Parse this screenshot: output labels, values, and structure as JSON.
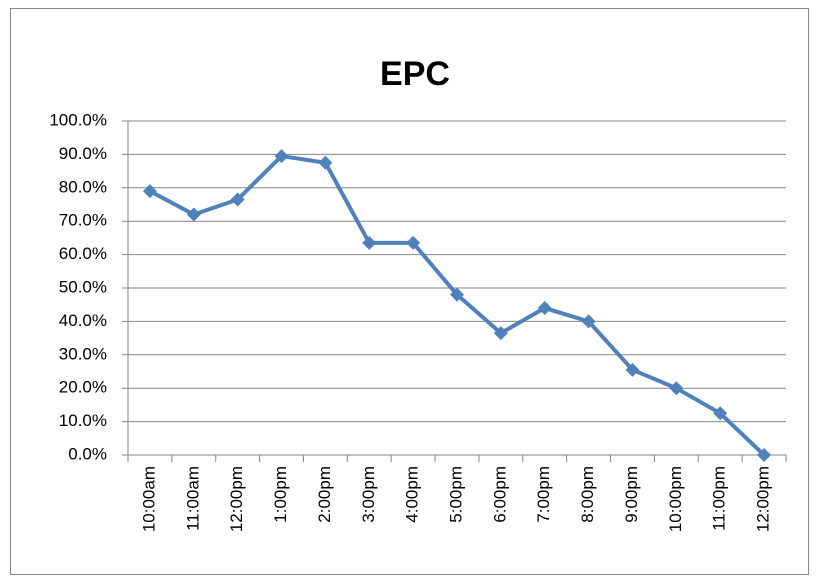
{
  "chart_data": {
    "type": "line",
    "title": "EPC",
    "categories": [
      "10:00am",
      "11:00am",
      "12:00pm",
      "1:00pm",
      "2:00pm",
      "3:00pm",
      "4:00pm",
      "5:00pm",
      "6:00pm",
      "7:00pm",
      "8:00pm",
      "9:00pm",
      "10:00pm",
      "11:00pm",
      "12:00pm"
    ],
    "series": [
      {
        "name": "EPC",
        "color": "#4f81bd",
        "values": [
          79,
          72,
          76.5,
          89.5,
          87.5,
          63.5,
          63.5,
          48,
          36.5,
          44,
          40,
          25.5,
          20,
          12.5,
          0
        ]
      }
    ],
    "ylim": [
      0,
      100
    ],
    "yticks": [
      {
        "value": 0,
        "label": "0.0%"
      },
      {
        "value": 10,
        "label": "10.0%"
      },
      {
        "value": 20,
        "label": "20.0%"
      },
      {
        "value": 30,
        "label": "30.0%"
      },
      {
        "value": 40,
        "label": "40.0%"
      },
      {
        "value": 50,
        "label": "50.0%"
      },
      {
        "value": 60,
        "label": "60.0%"
      },
      {
        "value": 70,
        "label": "70.0%"
      },
      {
        "value": 80,
        "label": "80.0%"
      },
      {
        "value": 90,
        "label": "90.0%"
      },
      {
        "value": 100,
        "label": "100.0%"
      }
    ],
    "grid": true
  }
}
